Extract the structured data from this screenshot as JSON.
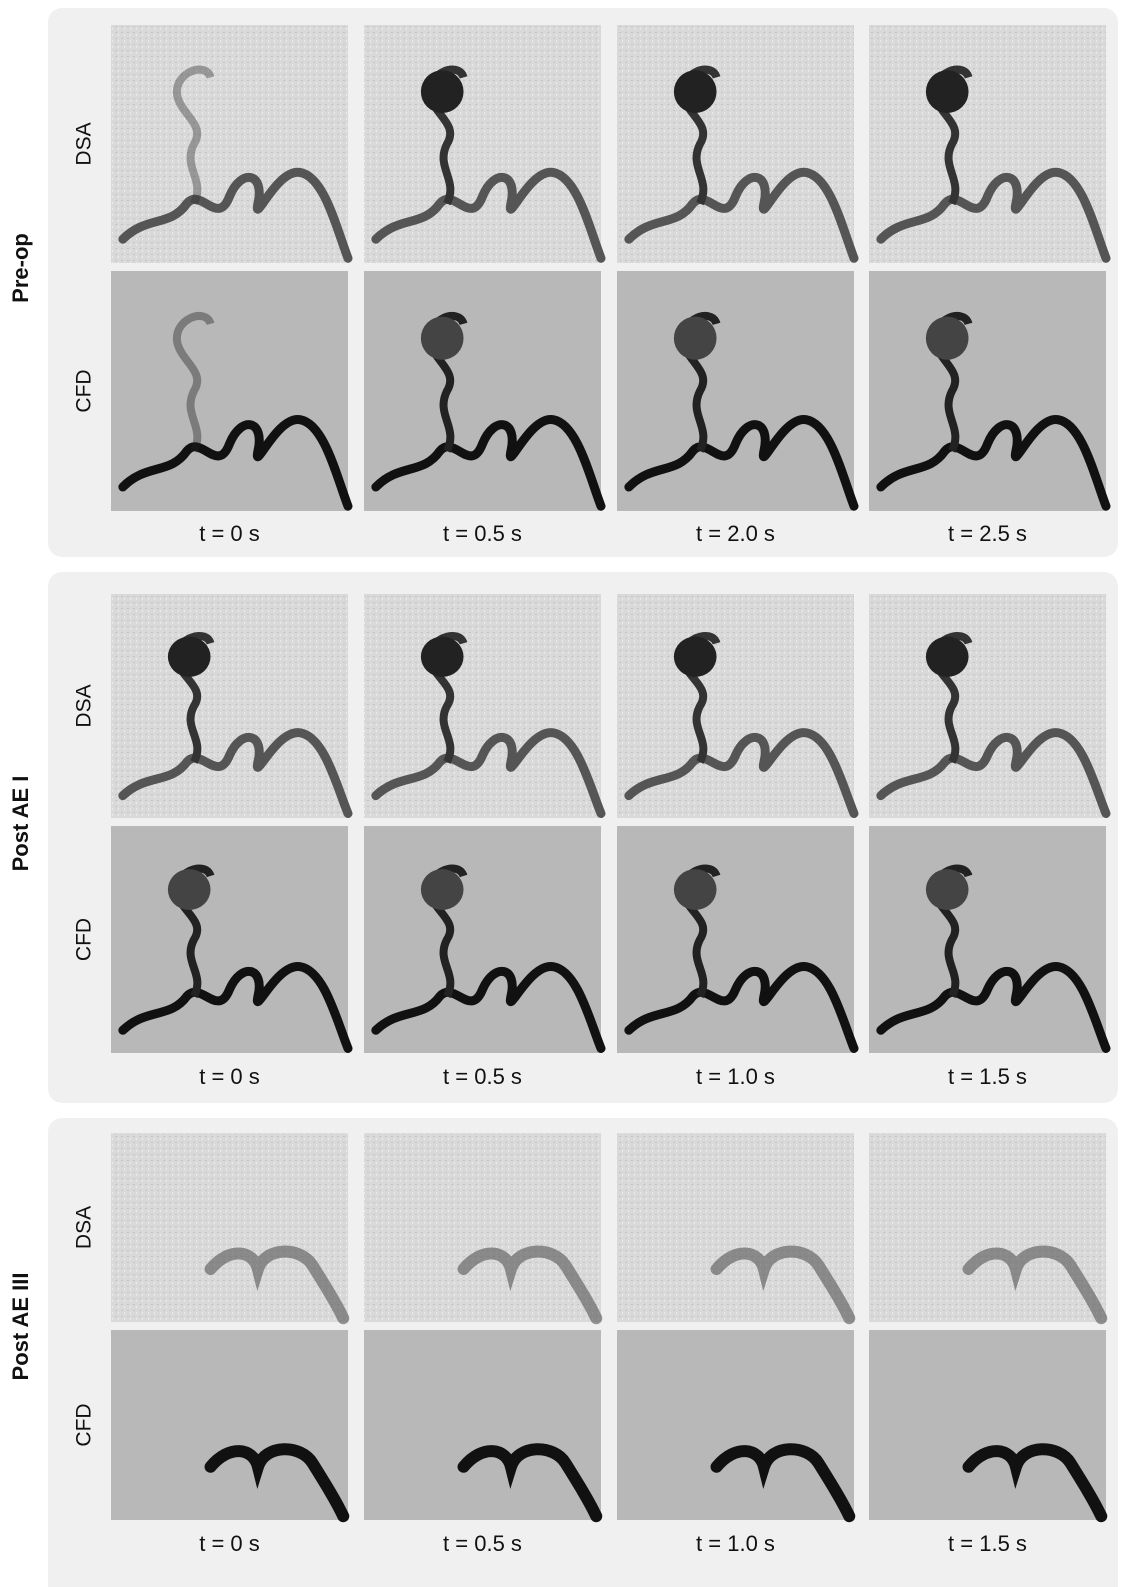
{
  "panels": [
    {
      "label": "Pre-op",
      "rows": [
        "DSA",
        "CFD"
      ],
      "times": [
        "t = 0 s",
        "t = 0.5 s",
        "t = 2.0 s",
        "t = 2.5 s"
      ]
    },
    {
      "label": "Post AE I",
      "rows": [
        "DSA",
        "CFD"
      ],
      "times": [
        "t = 0 s",
        "t = 0.5 s",
        "t = 1.0 s",
        "t = 1.5 s"
      ]
    },
    {
      "label": "Post AE III",
      "rows": [
        "DSA",
        "CFD"
      ],
      "times": [
        "t = 0 s",
        "t = 0.5 s",
        "t = 1.0 s",
        "t = 1.5 s"
      ]
    }
  ]
}
